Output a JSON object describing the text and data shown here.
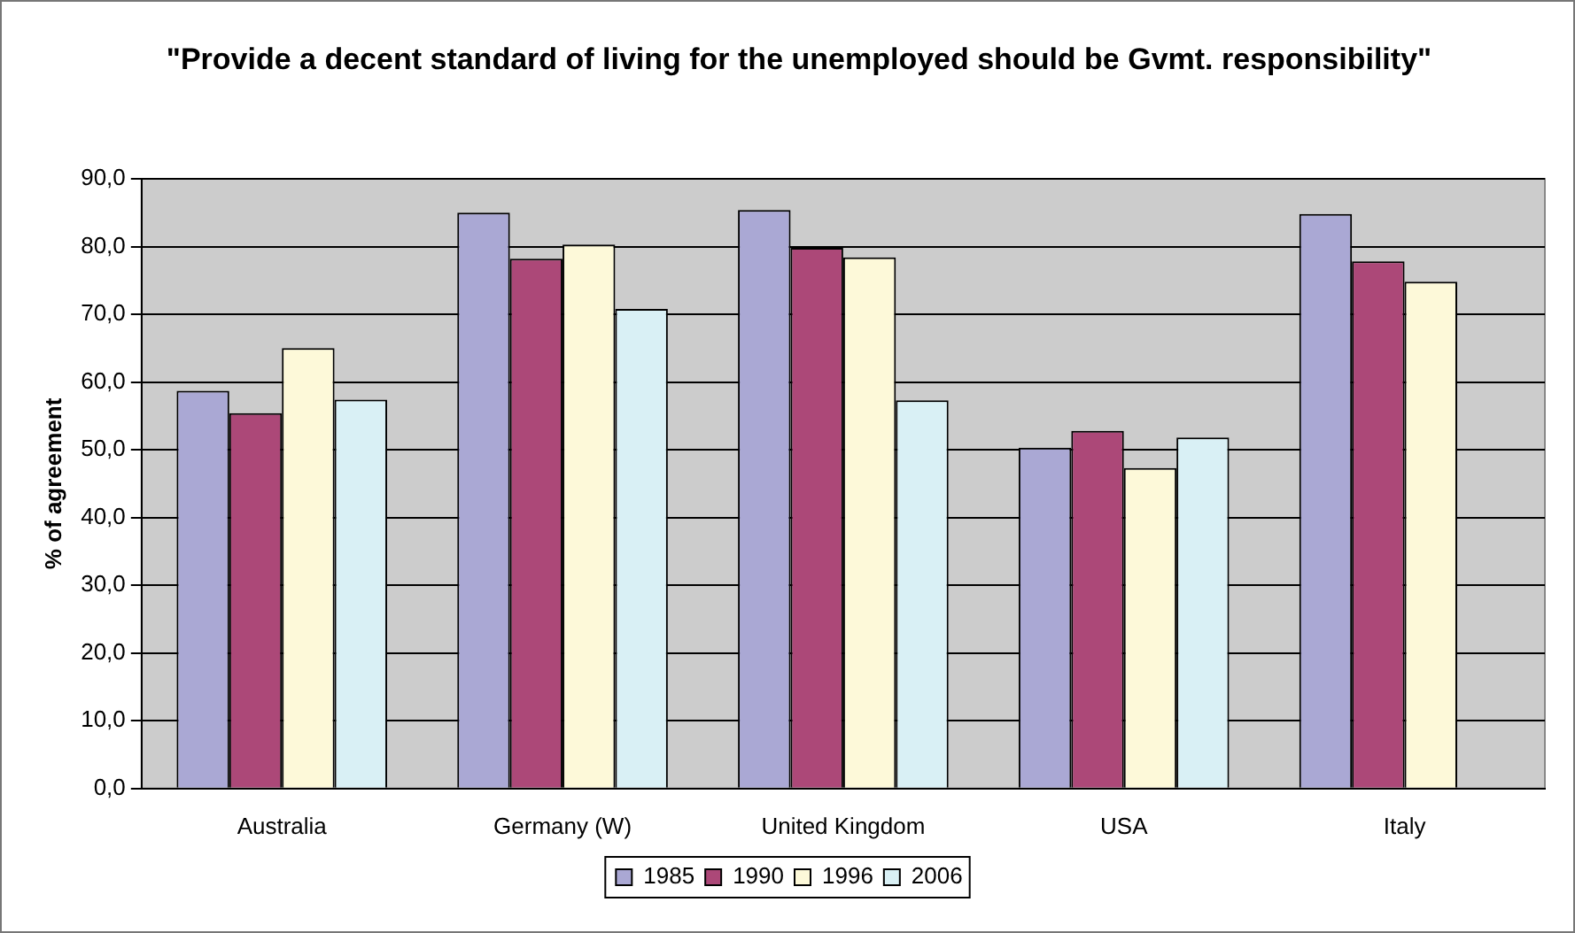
{
  "chart_data": {
    "type": "bar",
    "title": "\"Provide a decent standard of living for the unemployed should be Gvmt. responsibility\"",
    "ylabel": "% of agreement",
    "categories": [
      "Australia",
      "Germany (W)",
      "United Kingdom",
      "USA",
      "Italy"
    ],
    "series": [
      {
        "name": "1985",
        "color": "#aaa8d4",
        "values": [
          58.7,
          85.0,
          85.4,
          50.3,
          84.8
        ]
      },
      {
        "name": "1990",
        "color": "#ac4878",
        "values": [
          55.4,
          78.2,
          79.8,
          52.8,
          77.8
        ]
      },
      {
        "name": "1996",
        "color": "#fdf9d9",
        "values": [
          65.0,
          80.3,
          78.4,
          47.3,
          74.8
        ]
      },
      {
        "name": "2006",
        "color": "#d9f0f5",
        "values": [
          57.4,
          70.8,
          57.3,
          51.8,
          null
        ]
      }
    ],
    "ylim": [
      0,
      90
    ],
    "yticks": [
      {
        "value": 0,
        "label": "0,0"
      },
      {
        "value": 10,
        "label": "10,0"
      },
      {
        "value": 20,
        "label": "20,0"
      },
      {
        "value": 30,
        "label": "30,0"
      },
      {
        "value": 40,
        "label": "40,0"
      },
      {
        "value": 50,
        "label": "50,0"
      },
      {
        "value": 60,
        "label": "60,0"
      },
      {
        "value": 70,
        "label": "70,0"
      },
      {
        "value": 80,
        "label": "80,0"
      },
      {
        "value": 90,
        "label": "90,0"
      }
    ],
    "grid": "y",
    "legend": "bottom"
  }
}
